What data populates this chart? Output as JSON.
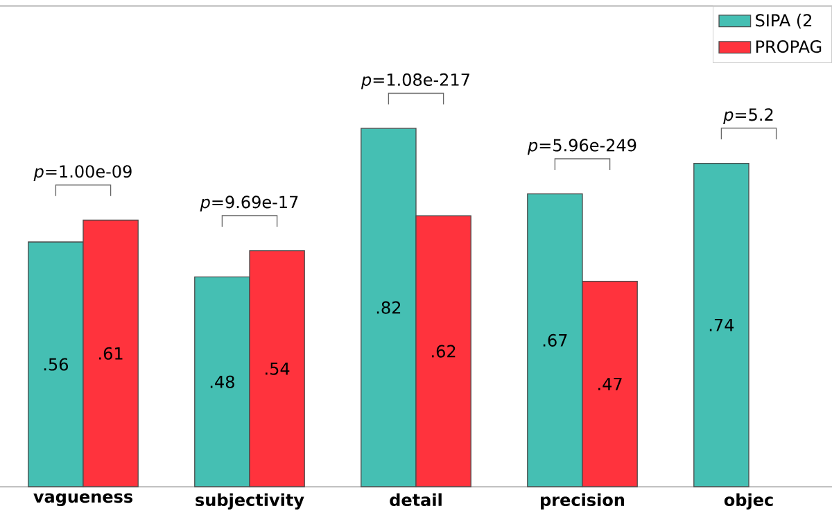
{
  "chart_data": {
    "type": "bar",
    "categories": [
      "vagueness",
      "subjectivity",
      "detail",
      "precision",
      "objec"
    ],
    "series": [
      {
        "name": "SIPA (2",
        "color": "#45bfb3",
        "values": [
          0.56,
          0.48,
          0.82,
          0.67,
          0.74
        ],
        "value_labels": [
          ".56",
          ".48",
          ".82",
          ".67",
          ".74"
        ]
      },
      {
        "name": "PROPAG",
        "color": "#ff333d",
        "values": [
          0.61,
          0.54,
          0.62,
          0.47,
          null
        ],
        "value_labels": [
          ".61",
          ".54",
          ".62",
          ".47",
          null
        ]
      }
    ],
    "ylim": [
      0,
      1.1
    ],
    "tick_labels": "x",
    "legend": "top right",
    "grid": false,
    "annotations": [
      "*p*=1.00e-09",
      "*p*=9.69e-17",
      "*p*=1.08e-217",
      "*p*=5.96e-249",
      "*p*=5.2"
    ]
  }
}
